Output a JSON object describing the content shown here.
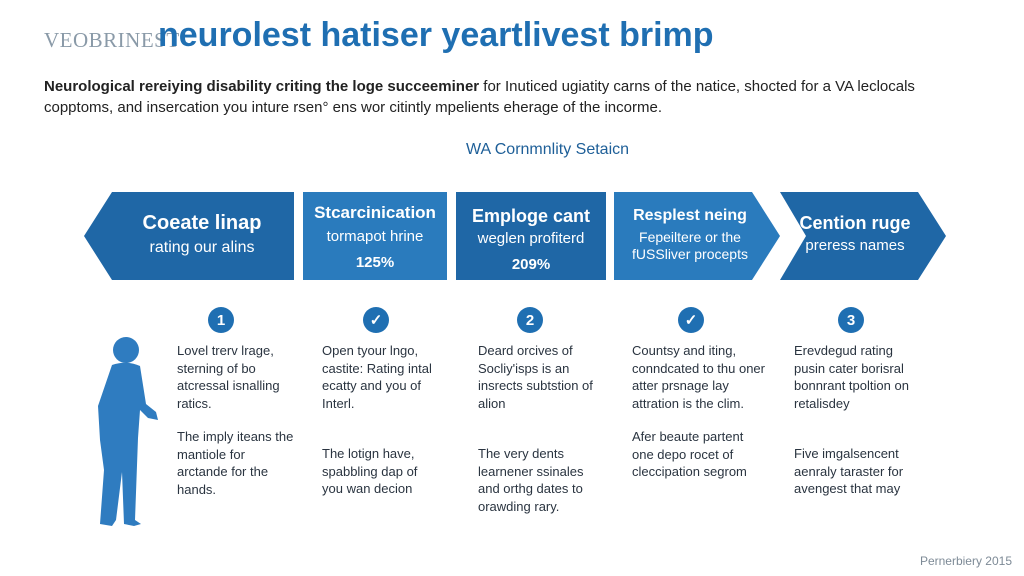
{
  "header": {
    "brand": "VEOBRINEST",
    "title": "neurolest hatiser yeartlivest brimp"
  },
  "intro": {
    "line1_bold": "Neurological rereiying disability criting the loge succeeminer",
    "line1_rest": " for Inuticed ugiatity carns of the natice, shocted for a VA leclocals",
    "line2": "copptoms, and insercation you inture rsen° ens wor citintly mpelients eherage of the incorme."
  },
  "section_title": "WA Cornmnlity Setaicn",
  "steps": [
    {
      "title": "Coeate linap",
      "subtitle": "rating our alins",
      "badge": "1",
      "para1": "Lovel trerv lrage, sterning of bo atcressal isnalling ratics.",
      "para2": "The imply iteans the mantiole for arctande for the hands."
    },
    {
      "title": "Stcarcinication",
      "subtitle": "tormapot hrine",
      "percent": "125%",
      "badge": "✓",
      "para1": "Open tyour lngo, castite: Rating intal ecatty and you of Interl.",
      "para2": "The lotign have, spabbling dap of you wan decion"
    },
    {
      "title": "Emploge cant",
      "subtitle": "weglen profiterd",
      "percent": "209%",
      "badge": "2",
      "para1": "Deard orcives of Socliy'isps is an insrects subtstion of alion",
      "para2": "The very dents learnener ssinales and orthg dates to orawding rary."
    },
    {
      "title": "Resplest neing",
      "subtitle": "Fepeiltere or the fUSSliver procepts",
      "badge": "✓",
      "para1": "Countsy and iting, conndcated to thu oner atter prsnage lay attration is the clim.",
      "para2": "Afer beaute partent one depo rocet of cleccipation segrom"
    },
    {
      "title": "Cention ruge",
      "subtitle": "preress names",
      "badge": "3",
      "para1": "Erevdegud rating pusin cater borisral bonnrant tpoltion on retalisdey",
      "para2": "Five imgalsencent aenraly taraster for avengest that may"
    }
  ],
  "footer": {
    "credit": "Pernerbiery 2015"
  },
  "colors": {
    "accent": "#1f6fb2",
    "arrow_dark": "#1f67a6",
    "arrow_light": "#2a7bbd",
    "figure": "#2f7cc0"
  },
  "icons": {
    "person": "person-silhouette-icon"
  }
}
